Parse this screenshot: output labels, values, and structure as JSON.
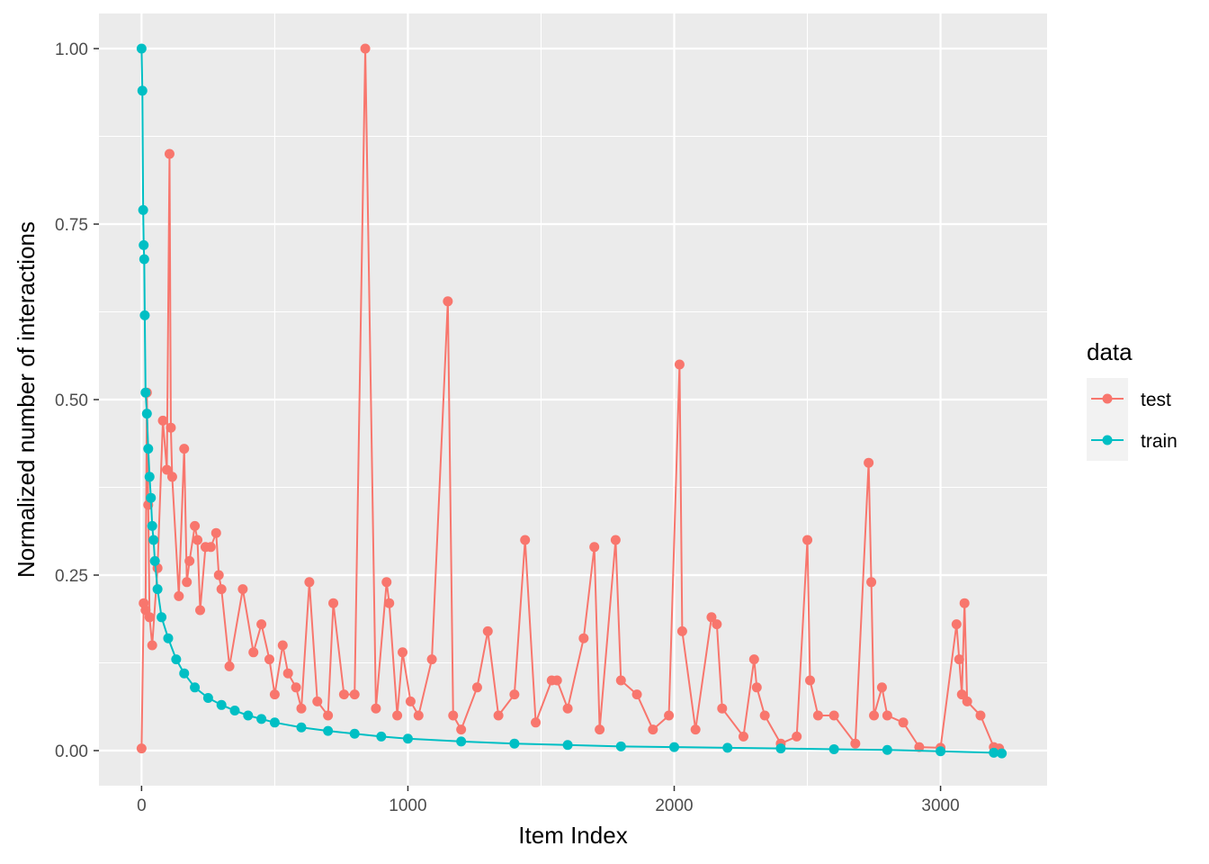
{
  "chart_data": {
    "type": "line",
    "xlabel": "Item Index",
    "ylabel": "Normalized number of interactions",
    "xlim": [
      -160,
      3400
    ],
    "ylim": [
      -0.05,
      1.05
    ],
    "x_ticks": [
      0,
      1000,
      2000,
      3000
    ],
    "x_tick_labels": [
      "0",
      "1000",
      "2000",
      "3000"
    ],
    "y_ticks": [
      0,
      0.25,
      0.5,
      0.75,
      1.0
    ],
    "y_tick_labels": [
      "0.00",
      "0.25",
      "0.50",
      "0.75",
      "1.00"
    ],
    "grid": true,
    "legend": {
      "title": "data",
      "position": "right"
    },
    "series": [
      {
        "name": "test",
        "color": "#F8766D",
        "x": [
          0,
          8,
          15,
          20,
          25,
          30,
          40,
          60,
          80,
          95,
          105,
          110,
          115,
          140,
          160,
          170,
          180,
          200,
          210,
          220,
          240,
          260,
          280,
          290,
          300,
          330,
          380,
          420,
          450,
          480,
          500,
          530,
          550,
          580,
          600,
          630,
          660,
          700,
          720,
          760,
          800,
          840,
          880,
          920,
          930,
          960,
          980,
          1010,
          1040,
          1090,
          1150,
          1170,
          1200,
          1260,
          1300,
          1340,
          1400,
          1440,
          1480,
          1540,
          1560,
          1600,
          1660,
          1700,
          1720,
          1780,
          1800,
          1860,
          1920,
          1980,
          2020,
          2030,
          2080,
          2140,
          2160,
          2180,
          2260,
          2300,
          2310,
          2340,
          2400,
          2460,
          2500,
          2510,
          2540,
          2600,
          2680,
          2730,
          2740,
          2750,
          2780,
          2800,
          2860,
          2920,
          3000,
          3060,
          3070,
          3080,
          3090,
          3100,
          3150,
          3200,
          3220
        ],
        "y": [
          0.003,
          0.21,
          0.2,
          0.51,
          0.35,
          0.19,
          0.15,
          0.26,
          0.47,
          0.4,
          0.85,
          0.46,
          0.39,
          0.22,
          0.43,
          0.24,
          0.27,
          0.32,
          0.3,
          0.2,
          0.29,
          0.29,
          0.31,
          0.25,
          0.23,
          0.12,
          0.23,
          0.14,
          0.18,
          0.13,
          0.08,
          0.15,
          0.11,
          0.09,
          0.06,
          0.24,
          0.07,
          0.05,
          0.21,
          0.08,
          0.08,
          1.0,
          0.06,
          0.24,
          0.21,
          0.05,
          0.14,
          0.07,
          0.05,
          0.13,
          0.64,
          0.05,
          0.03,
          0.09,
          0.17,
          0.05,
          0.08,
          0.3,
          0.04,
          0.1,
          0.1,
          0.06,
          0.16,
          0.29,
          0.03,
          0.3,
          0.1,
          0.08,
          0.03,
          0.05,
          0.55,
          0.17,
          0.03,
          0.19,
          0.18,
          0.06,
          0.02,
          0.13,
          0.09,
          0.05,
          0.01,
          0.02,
          0.3,
          0.1,
          0.05,
          0.05,
          0.01,
          0.41,
          0.24,
          0.05,
          0.09,
          0.05,
          0.04,
          0.005,
          0.004,
          0.18,
          0.13,
          0.08,
          0.21,
          0.07,
          0.05,
          0.005,
          0.003
        ]
      },
      {
        "name": "train",
        "color": "#00BFC4",
        "x": [
          0,
          3,
          6,
          8,
          10,
          12,
          15,
          20,
          25,
          30,
          35,
          40,
          45,
          50,
          60,
          75,
          100,
          130,
          160,
          200,
          250,
          300,
          350,
          400,
          450,
          500,
          600,
          700,
          800,
          900,
          1000,
          1200,
          1400,
          1600,
          1800,
          2000,
          2200,
          2400,
          2600,
          2800,
          3000,
          3200,
          3230
        ],
        "y": [
          1.0,
          0.94,
          0.77,
          0.72,
          0.7,
          0.62,
          0.51,
          0.48,
          0.43,
          0.39,
          0.36,
          0.32,
          0.3,
          0.27,
          0.23,
          0.19,
          0.16,
          0.13,
          0.11,
          0.09,
          0.075,
          0.065,
          0.057,
          0.05,
          0.045,
          0.04,
          0.033,
          0.028,
          0.024,
          0.02,
          0.017,
          0.013,
          0.01,
          0.008,
          0.006,
          0.005,
          0.004,
          0.003,
          0.002,
          0.001,
          -0.001,
          -0.003,
          -0.004
        ]
      }
    ]
  }
}
